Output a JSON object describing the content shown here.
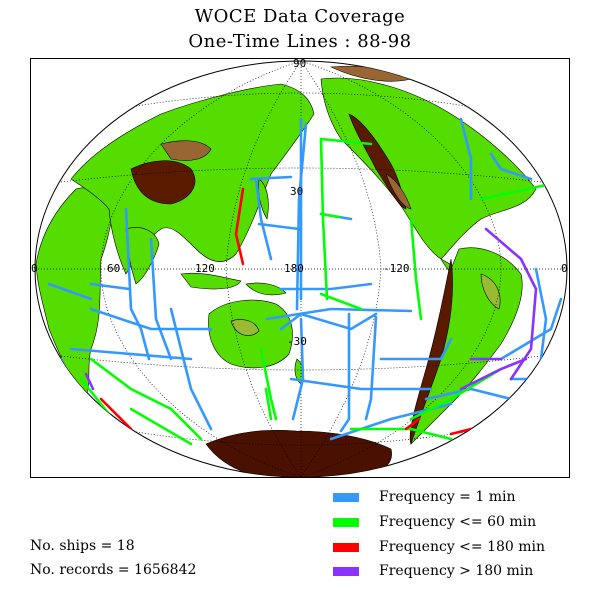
{
  "title": {
    "line1": "WOCE Data Coverage",
    "line2": "One-Time Lines : 88-98"
  },
  "map": {
    "grid_labels": {
      "lat_90": "90",
      "lat_30n": "30",
      "lat_30s": "-30",
      "lon_60": "60",
      "lon_120": "120",
      "lon_180": "180",
      "lon_m120": "-120",
      "lon_0_left": "0",
      "lon_0_right": "0"
    },
    "colors": {
      "ocean": "#ffffff",
      "lowland": "#55dd00",
      "upland": "#99bb33",
      "highland": "#996633",
      "mountain": "#5a1a00",
      "ice": "#4a1000"
    }
  },
  "legend": {
    "items": [
      {
        "label": "Frequency = 1 min",
        "color": "#3399ff"
      },
      {
        "label": "Frequency <= 60 min",
        "color": "#00ff00"
      },
      {
        "label": "Frequency <= 180 min",
        "color": "#ff0000"
      },
      {
        "label": "Frequency > 180 min",
        "color": "#8833ff"
      }
    ]
  },
  "stats": {
    "ships": "No. ships = 18",
    "records": "No. records = 1656842"
  }
}
